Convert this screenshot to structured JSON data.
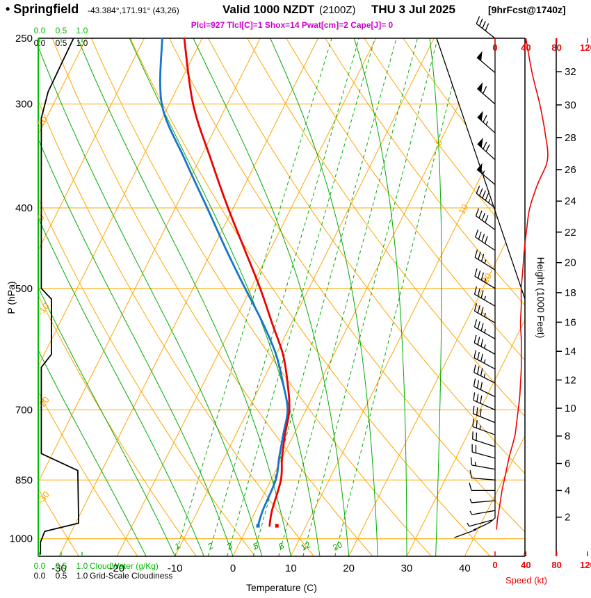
{
  "header": {
    "station_title": "• Springfield",
    "coords": "-43.384°,171.91° (43,26)",
    "valid": "Valid 1000 NZDT",
    "zulu": "(2100Z)",
    "date": "THU 3 Jul 2025",
    "fcst": "[9hrFcst@1740z]",
    "params": "Plcl=927 Tlcl[C]=1 Shox=14 Pwat[cm]=2 Cape[J]= 0"
  },
  "colors": {
    "grid_orange": "#FFA500",
    "grid_green": "#00AA00",
    "scale_green": "#00BB00",
    "temperature_red": "#EE0000",
    "dewpoint_blue": "#1874CD",
    "speed_red": "#EE0000",
    "params_magenta": "#CC00CC",
    "black": "#000000"
  },
  "axes": {
    "pressure": {
      "label": "P (hPa)",
      "ticks": [
        250,
        300,
        400,
        500,
        700,
        850,
        1000
      ]
    },
    "temperature": {
      "label": "Temperature (C)",
      "ticks": [
        -30,
        -20,
        -10,
        0,
        10,
        20,
        30,
        40
      ]
    },
    "height": {
      "label": "Height (1000 Feet)",
      "ticks": [
        2,
        4,
        6,
        8,
        10,
        12,
        14,
        16,
        18,
        20,
        22,
        24,
        26,
        28,
        30,
        32
      ]
    },
    "speed": {
      "label": "Speed (kt)",
      "ticks": [
        0,
        40,
        80,
        120
      ]
    },
    "cloudwater": {
      "label": "CloudWater (g/Kg)",
      "ticks": [
        "0.0",
        "0.5",
        "1.0"
      ]
    },
    "cloudiness": {
      "label": "Grid-Scale Cloudiness",
      "ticks": [
        "0.0",
        "0.5",
        "1.0"
      ]
    }
  },
  "chart_data": {
    "type": "skewt-logp",
    "pressure_range": [
      250,
      1050
    ],
    "isobars": [
      300,
      400,
      500,
      700,
      850,
      1000
    ],
    "isotherms": {
      "min": -80,
      "max": 50,
      "step": 10,
      "labels": [
        0,
        10,
        20
      ]
    },
    "dry_adiabats": {
      "min": -30,
      "max": 120,
      "step": 10,
      "labels": [
        10,
        0,
        -10,
        -20,
        -30
      ]
    },
    "moist_adiabats": {
      "min": -15,
      "max": 35,
      "step": 5
    },
    "mixing_ratio": {
      "values": [
        1,
        2,
        3,
        5,
        8,
        12,
        20
      ],
      "anchor_temps_c": [
        -10,
        -4.3,
        -1,
        3.5,
        7.9,
        12.1,
        17.6
      ]
    },
    "sounding": {
      "pressure_hpa": [
        965,
        925,
        850,
        800,
        750,
        700,
        650,
        600,
        550,
        500,
        450,
        400,
        350,
        300,
        250
      ],
      "temperature_c": [
        3.7,
        2.8,
        1.7,
        0.0,
        -1.5,
        -2.9,
        -5.5,
        -8.8,
        -13.4,
        -18.4,
        -24.3,
        -30.9,
        -38.0,
        -45.9,
        -53.1
      ],
      "dewpoint_c": [
        1.7,
        1.2,
        0.8,
        -0.5,
        -1.8,
        -3.2,
        -6.3,
        -10.0,
        -15.0,
        -21.0,
        -27.5,
        -34.5,
        -42.5,
        -51.3,
        -56.9
      ]
    },
    "wind": {
      "pressure_hpa": [
        975,
        950,
        925,
        900,
        875,
        850,
        825,
        800,
        775,
        750,
        725,
        700,
        675,
        650,
        625,
        600,
        575,
        550,
        525,
        500,
        475,
        450,
        425,
        400,
        375,
        350,
        325,
        300,
        275,
        250
      ],
      "speed_kt": [
        2,
        3,
        5,
        7,
        9,
        12,
        15,
        18,
        22,
        26,
        28,
        30,
        32,
        33,
        34,
        34,
        34,
        33,
        34,
        34,
        36,
        38,
        41,
        45,
        55,
        68,
        65,
        58,
        48,
        40
      ],
      "direction_deg": [
        250,
        255,
        260,
        265,
        270,
        275,
        280,
        285,
        288,
        290,
        292,
        294,
        296,
        297,
        298,
        299,
        300,
        300,
        300,
        301,
        302,
        304,
        306,
        308,
        310,
        312,
        312,
        311,
        310,
        308
      ]
    },
    "cloudiness_profile": {
      "pressure_hpa": [
        250,
        290,
        312,
        500,
        515,
        600,
        622,
        790,
        828,
        958,
        980,
        1010,
        1045
      ],
      "value": [
        0.8,
        0.2,
        0.04,
        0.04,
        0.28,
        0.28,
        0.04,
        0.04,
        0.9,
        0.92,
        0.12,
        0.02,
        0.02
      ]
    },
    "speed_axis_max": 120
  }
}
